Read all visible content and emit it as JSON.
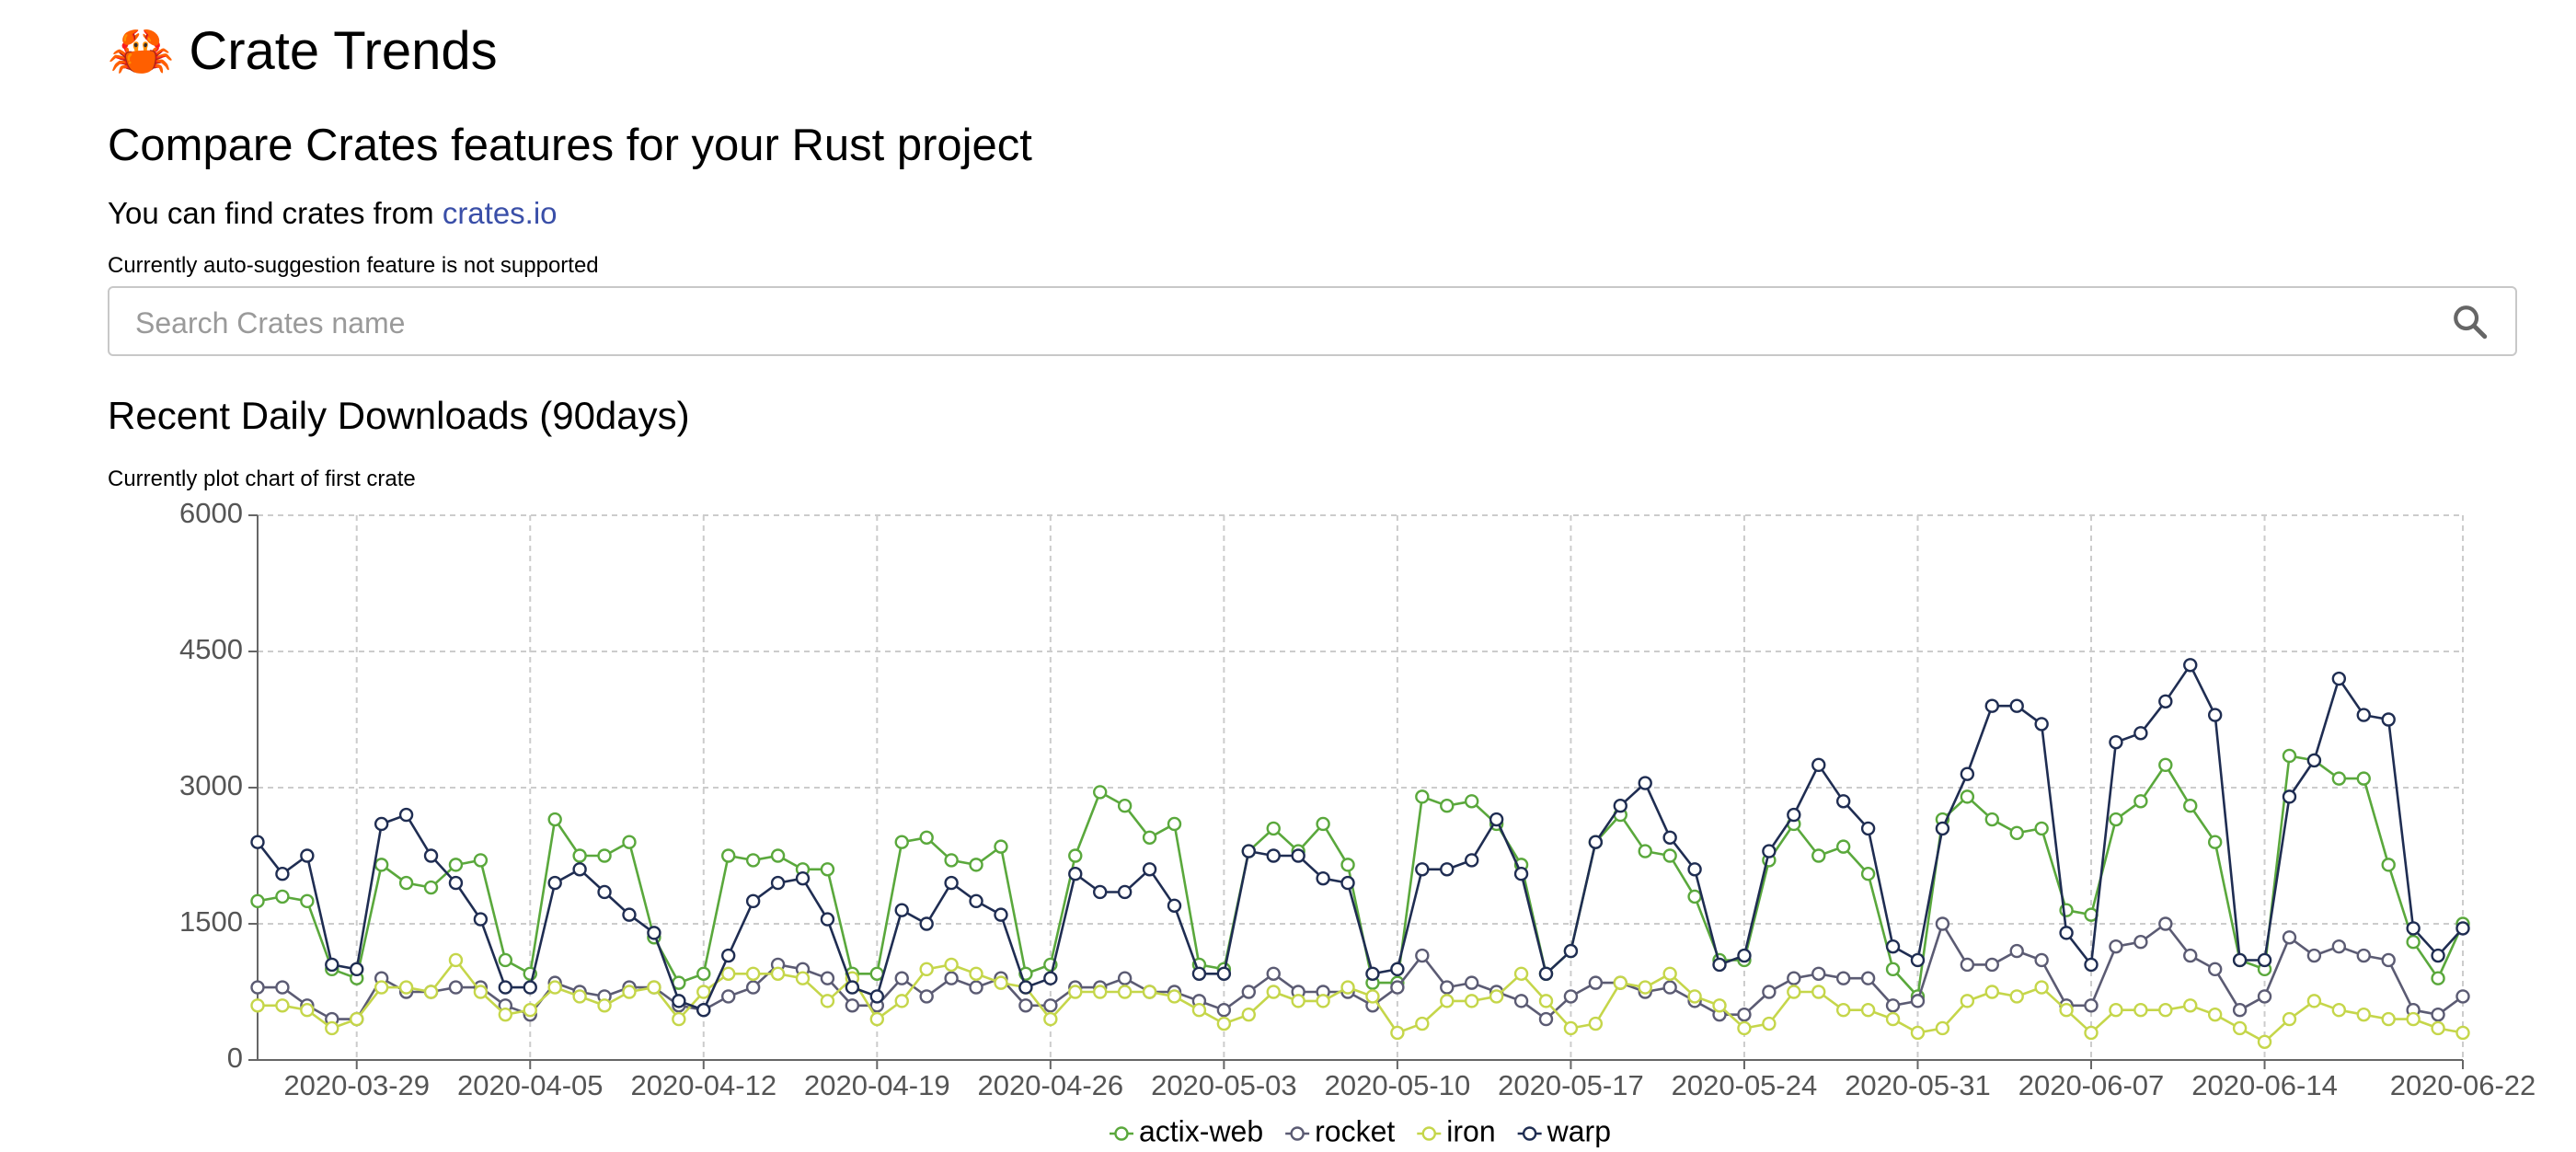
{
  "header": {
    "title": "🦀 Crate Trends",
    "subtitle": "Compare Crates features for your Rust project",
    "intro": "You can find crates from",
    "link": "crates.io",
    "note": "Currently auto-suggestion feature is not supported"
  },
  "search": {
    "placeholder": "Search Crates name"
  },
  "section": {
    "title": "Recent Daily Downloads (90days)",
    "note": "Currently plot chart of first crate"
  },
  "chart_data": {
    "type": "line",
    "x": [
      "2020-03-25",
      "2020-03-26",
      "2020-03-27",
      "2020-03-28",
      "2020-03-29",
      "2020-03-30",
      "2020-03-31",
      "2020-04-01",
      "2020-04-02",
      "2020-04-03",
      "2020-04-04",
      "2020-04-05",
      "2020-04-06",
      "2020-04-07",
      "2020-04-08",
      "2020-04-09",
      "2020-04-10",
      "2020-04-11",
      "2020-04-12",
      "2020-04-13",
      "2020-04-14",
      "2020-04-15",
      "2020-04-16",
      "2020-04-17",
      "2020-04-18",
      "2020-04-19",
      "2020-04-20",
      "2020-04-21",
      "2020-04-22",
      "2020-04-23",
      "2020-04-24",
      "2020-04-25",
      "2020-04-26",
      "2020-04-27",
      "2020-04-28",
      "2020-04-29",
      "2020-04-30",
      "2020-05-01",
      "2020-05-02",
      "2020-05-03",
      "2020-05-04",
      "2020-05-05",
      "2020-05-06",
      "2020-05-07",
      "2020-05-08",
      "2020-05-09",
      "2020-05-10",
      "2020-05-11",
      "2020-05-12",
      "2020-05-13",
      "2020-05-14",
      "2020-05-15",
      "2020-05-16",
      "2020-05-17",
      "2020-05-18",
      "2020-05-19",
      "2020-05-20",
      "2020-05-21",
      "2020-05-22",
      "2020-05-23",
      "2020-05-24",
      "2020-05-25",
      "2020-05-26",
      "2020-05-27",
      "2020-05-28",
      "2020-05-29",
      "2020-05-30",
      "2020-05-31",
      "2020-06-01",
      "2020-06-02",
      "2020-06-03",
      "2020-06-04",
      "2020-06-05",
      "2020-06-06",
      "2020-06-07",
      "2020-06-08",
      "2020-06-09",
      "2020-06-10",
      "2020-06-11",
      "2020-06-12",
      "2020-06-13",
      "2020-06-14",
      "2020-06-15",
      "2020-06-16",
      "2020-06-17",
      "2020-06-18",
      "2020-06-19",
      "2020-06-20",
      "2020-06-21",
      "2020-06-22"
    ],
    "series": [
      {
        "name": "actix-web",
        "color": "#5aa83c",
        "values": [
          1750,
          1800,
          1750,
          1000,
          900,
          2150,
          1950,
          1900,
          2150,
          2200,
          1100,
          950,
          2650,
          2250,
          2250,
          2400,
          1350,
          850,
          950,
          2250,
          2200,
          2250,
          2100,
          2100,
          950,
          950,
          2400,
          2450,
          2200,
          2150,
          2350,
          950,
          1050,
          2250,
          2950,
          2800,
          2450,
          2600,
          1050,
          1000,
          2300,
          2550,
          2300,
          2600,
          2150,
          850,
          850,
          2900,
          2800,
          2850,
          2600,
          2150,
          950,
          1200,
          2400,
          2700,
          2300,
          2250,
          1800,
          1100,
          1100,
          2200,
          2600,
          2250,
          2350,
          2050,
          1000,
          700,
          2650,
          2900,
          2650,
          2500,
          2550,
          1650,
          1600,
          2650,
          2850,
          3250,
          2800,
          2400,
          1100,
          1000,
          3350,
          3300,
          3100,
          3100,
          2150,
          1300,
          900,
          1500
        ]
      },
      {
        "name": "rocket",
        "color": "#5b5b73",
        "values": [
          800,
          800,
          600,
          450,
          450,
          900,
          750,
          750,
          800,
          800,
          600,
          500,
          850,
          750,
          700,
          800,
          800,
          600,
          550,
          700,
          800,
          1050,
          1000,
          900,
          600,
          600,
          900,
          700,
          900,
          800,
          900,
          600,
          600,
          800,
          800,
          900,
          750,
          750,
          650,
          550,
          750,
          950,
          750,
          750,
          750,
          600,
          800,
          1150,
          800,
          850,
          750,
          650,
          450,
          700,
          850,
          850,
          750,
          800,
          650,
          500,
          500,
          750,
          900,
          950,
          900,
          900,
          600,
          650,
          1500,
          1050,
          1050,
          1200,
          1100,
          600,
          600,
          1250,
          1300,
          1500,
          1150,
          1000,
          550,
          700,
          1350,
          1150,
          1250,
          1150,
          1100,
          550,
          500,
          700
        ]
      },
      {
        "name": "iron",
        "color": "#c5d64a",
        "values": [
          600,
          600,
          550,
          350,
          450,
          800,
          800,
          750,
          1100,
          750,
          500,
          550,
          800,
          700,
          600,
          750,
          800,
          450,
          750,
          950,
          950,
          950,
          900,
          650,
          900,
          450,
          650,
          1000,
          1050,
          950,
          850,
          800,
          450,
          750,
          750,
          750,
          750,
          700,
          550,
          400,
          500,
          750,
          650,
          650,
          800,
          700,
          300,
          400,
          650,
          650,
          700,
          950,
          650,
          350,
          400,
          850,
          800,
          950,
          700,
          600,
          350,
          400,
          750,
          750,
          550,
          550,
          450,
          300,
          350,
          650,
          750,
          700,
          800,
          550,
          300,
          550,
          550,
          550,
          600,
          500,
          350,
          200,
          450,
          650,
          550,
          500,
          450,
          450,
          350,
          300
        ]
      },
      {
        "name": "warp",
        "color": "#1f2d52",
        "values": [
          2400,
          2050,
          2250,
          1050,
          1000,
          2600,
          2700,
          2250,
          1950,
          1550,
          800,
          800,
          1950,
          2100,
          1850,
          1600,
          1400,
          650,
          550,
          1150,
          1750,
          1950,
          2000,
          1550,
          800,
          700,
          1650,
          1500,
          1950,
          1750,
          1600,
          800,
          900,
          2050,
          1850,
          1850,
          2100,
          1700,
          950,
          950,
          2300,
          2250,
          2250,
          2000,
          1950,
          950,
          1000,
          2100,
          2100,
          2200,
          2650,
          2050,
          950,
          1200,
          2400,
          2800,
          3050,
          2450,
          2100,
          1050,
          1150,
          2300,
          2700,
          3250,
          2850,
          2550,
          1250,
          1100,
          2550,
          3150,
          3900,
          3900,
          3700,
          1400,
          1050,
          3500,
          3600,
          3950,
          4350,
          3800,
          1100,
          1100,
          2900,
          3300,
          4200,
          3800,
          3750,
          1450,
          1150,
          1450
        ]
      }
    ],
    "xticks": [
      "2020-03-29",
      "2020-04-05",
      "2020-04-12",
      "2020-04-19",
      "2020-04-26",
      "2020-05-03",
      "2020-05-10",
      "2020-05-17",
      "2020-05-24",
      "2020-05-31",
      "2020-06-07",
      "2020-06-14",
      "2020-06-22"
    ],
    "ylim": [
      0,
      6000
    ],
    "yticks": [
      0,
      1500,
      3000,
      4500,
      6000
    ],
    "grid": true,
    "legend": "bottom"
  }
}
